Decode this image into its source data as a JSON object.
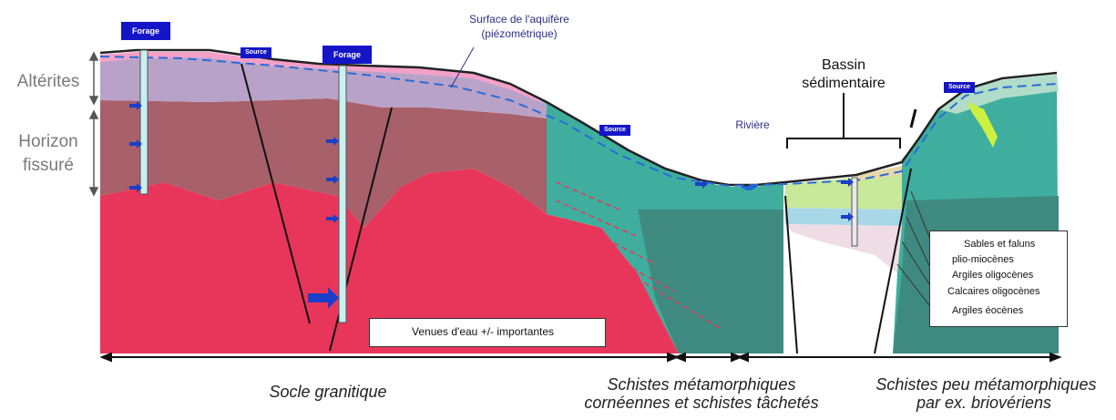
{
  "side_labels": {
    "alterites": "Altérites",
    "horizon_line1": "Horizon",
    "horizon_line2": "fissuré"
  },
  "top_labels": {
    "surface_line1": "Surface de l'aquifère",
    "surface_line2": "(piézométrique)",
    "bassin_line1": "Bassin",
    "bassin_line2": "sédimentaire",
    "riviere": "Rivière"
  },
  "tags": {
    "forage_1": "Forage",
    "forage_2": "Forage",
    "source_1": "Source",
    "source_2": "Source",
    "source_3": "Source"
  },
  "water_legend": "Venues d'eau +/- importantes",
  "strata_legend": [
    "Sables et faluns",
    "plio-miocènes",
    "Argiles oligocènes",
    "Calcaires oligocènes",
    "Argiles éocènes"
  ],
  "bottom_labels": {
    "socle": "Socle  granitique",
    "schistes_meta_line1": "Schistes métamorphiques",
    "schistes_meta_line2": "cornéennes et schistes tâchetés",
    "schistes_peu_line1": "Schistes peu métamorphiques",
    "schistes_peu_line2": "par ex. briovériens"
  },
  "colors": {
    "granite": "#e8365a",
    "fissured": "#a8606a",
    "alterites": "#b9a2c8",
    "soil": "#f4a0c8",
    "schist": "#3fae9e",
    "schist_dark": "#3e8a80",
    "water_line": "#2a6bd6",
    "arrow": "#1a3fc8"
  }
}
